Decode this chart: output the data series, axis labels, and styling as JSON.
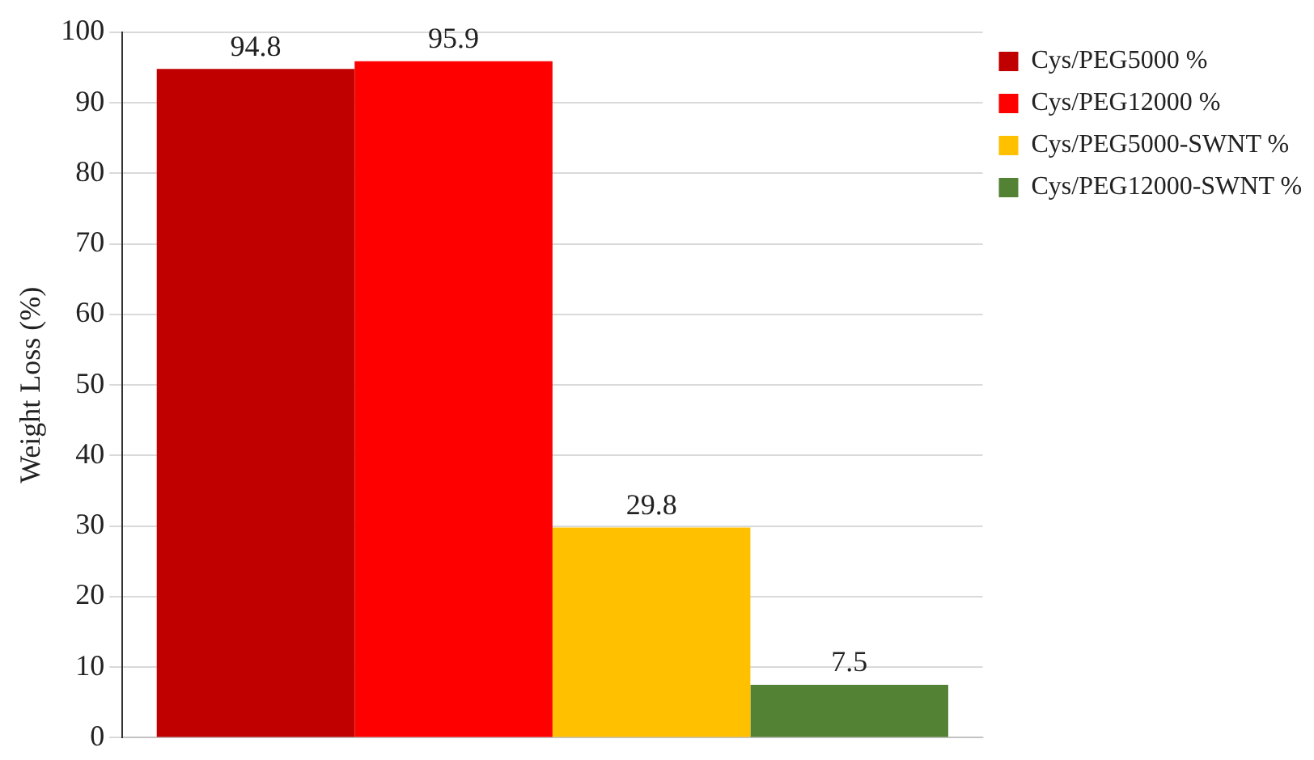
{
  "chart_data": {
    "type": "bar",
    "ylabel": "Weight Loss (%)",
    "categories": [
      null
    ],
    "series": [
      {
        "name": "Cys/PEG5000 %",
        "color": "#c00000",
        "values": [
          94.8
        ]
      },
      {
        "name": "Cys/PEG12000 %",
        "color": "#ff0000",
        "values": [
          95.9
        ]
      },
      {
        "name": "Cys/PEG5000-SWNT %",
        "color": "#ffc000",
        "values": [
          29.8
        ]
      },
      {
        "name": "Cys/PEG12000-SWNT %",
        "color": "#548235",
        "values": [
          7.5
        ]
      }
    ],
    "ylim": [
      0,
      100
    ],
    "yticks": [
      0,
      10,
      20,
      30,
      40,
      50,
      60,
      70,
      80,
      90,
      100
    ],
    "grid": "y",
    "legend": "right",
    "data_labels": true,
    "tick_labels": "y"
  }
}
